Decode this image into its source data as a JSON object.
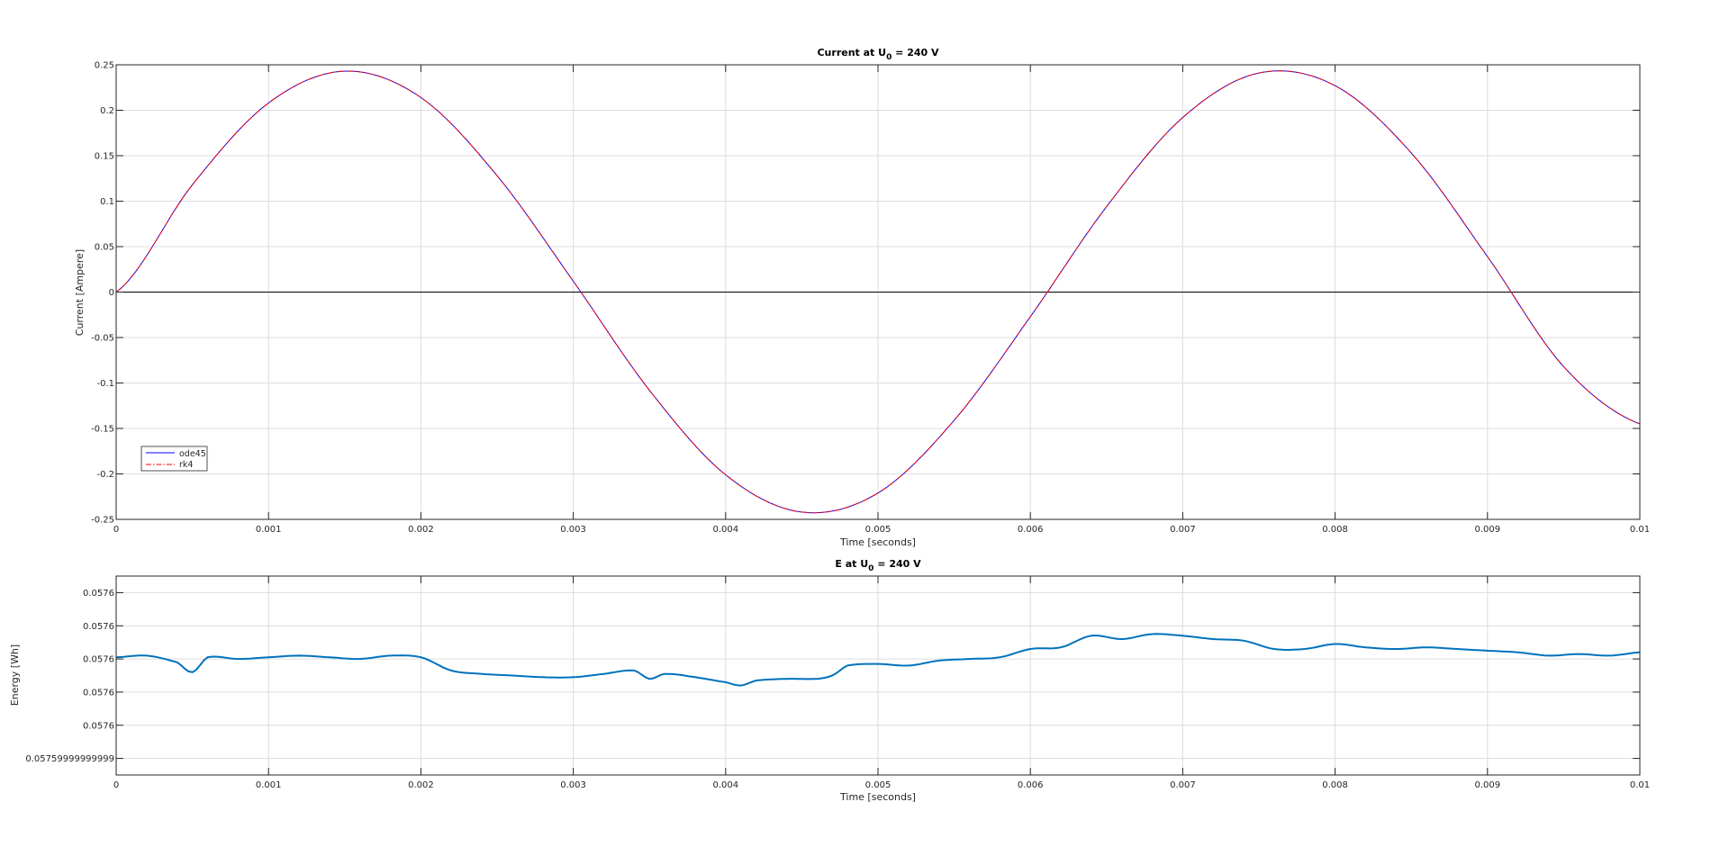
{
  "colors": {
    "ode45": "#0000ff",
    "rk4": "#ff0000",
    "energy": "#0072bd",
    "grid": "#dddddd",
    "axis": "#262626",
    "zero_line": "#000000"
  },
  "chart_data": [
    {
      "type": "line",
      "title": "Current at U",
      "title_sub": "0",
      "title_suffix": " = 240 V",
      "xlabel": "Time [seconds]",
      "ylabel": "Current [Ampere]",
      "xlim": [
        0,
        0.01
      ],
      "ylim": [
        -0.25,
        0.25
      ],
      "grid": true,
      "legend_position": "bottom-left",
      "xticks": [
        0,
        0.001,
        0.002,
        0.003,
        0.004,
        0.005,
        0.006,
        0.007,
        0.008,
        0.009,
        0.01
      ],
      "xtick_labels": [
        "0",
        "0.001",
        "0.002",
        "0.003",
        "0.004",
        "0.005",
        "0.006",
        "0.007",
        "0.008",
        "0.009",
        "0.01"
      ],
      "yticks": [
        -0.25,
        -0.2,
        -0.15,
        -0.1,
        -0.05,
        0,
        0.05,
        0.1,
        0.15,
        0.2,
        0.25
      ],
      "ytick_labels": [
        "-0.25",
        "-0.2",
        "-0.15",
        "-0.1",
        "-0.05",
        "0",
        "0.05",
        "0.1",
        "0.15",
        "0.2",
        "0.25"
      ],
      "zero_line": true,
      "series": [
        {
          "name": "ode45",
          "style": "solid",
          "x": [
            0,
            0.0005,
            0.001,
            0.0015,
            0.002,
            0.0025,
            0.003,
            0.0035,
            0.004,
            0.0045,
            0.005,
            0.0055,
            0.006,
            0.0065,
            0.007,
            0.0075,
            0.008,
            0.0085,
            0.009,
            0.0095,
            0.01
          ],
          "y": [
            0,
            0.118,
            0.208,
            0.243,
            0.214,
            0.128,
            0.012,
            -0.108,
            -0.201,
            -0.242,
            -0.221,
            -0.141,
            -0.027,
            0.094,
            0.192,
            0.241,
            0.227,
            0.153,
            0.039,
            -0.082,
            -0.145
          ]
        },
        {
          "name": "rk4",
          "style": "dashdot",
          "x": [
            0,
            0.0005,
            0.001,
            0.0015,
            0.002,
            0.0025,
            0.003,
            0.0035,
            0.004,
            0.0045,
            0.005,
            0.0055,
            0.006,
            0.0065,
            0.007,
            0.0075,
            0.008,
            0.0085,
            0.009,
            0.0095,
            0.01
          ],
          "y": [
            0,
            0.118,
            0.208,
            0.243,
            0.214,
            0.128,
            0.012,
            -0.108,
            -0.201,
            -0.242,
            -0.221,
            -0.141,
            -0.027,
            0.094,
            0.192,
            0.241,
            0.227,
            0.153,
            0.039,
            -0.082,
            -0.145
          ]
        }
      ]
    },
    {
      "type": "line",
      "title": "E at U",
      "title_sub": "0",
      "title_suffix": " = 240 V",
      "xlabel": "Time [seconds]",
      "ylabel": "Energy [Wh]",
      "xlim": [
        0,
        0.01
      ],
      "ylim": [
        0,
        6
      ],
      "grid": true,
      "xticks": [
        0,
        0.001,
        0.002,
        0.003,
        0.004,
        0.005,
        0.006,
        0.007,
        0.008,
        0.009,
        0.01
      ],
      "xtick_labels": [
        "0",
        "0.001",
        "0.002",
        "0.003",
        "0.004",
        "0.005",
        "0.006",
        "0.007",
        "0.008",
        "0.009",
        "0.01"
      ],
      "yticks": [
        0.5,
        1.5,
        2.5,
        3.5,
        4.5,
        5.5
      ],
      "ytick_labels": [
        "0.05759999999999",
        "0.0576",
        "0.0576",
        "0.0576",
        "0.0576",
        "0.0576"
      ],
      "series": [
        {
          "name": "",
          "x": [
            0,
            0.0002,
            0.0004,
            0.0005,
            0.0006,
            0.0008,
            0.001,
            0.0012,
            0.0014,
            0.0016,
            0.0018,
            0.002,
            0.0022,
            0.0024,
            0.0026,
            0.0028,
            0.003,
            0.0032,
            0.0034,
            0.0035,
            0.0036,
            0.0038,
            0.004,
            0.0041,
            0.0042,
            0.0044,
            0.0046,
            0.0047,
            0.0048,
            0.005,
            0.0052,
            0.0054,
            0.0056,
            0.0058,
            0.006,
            0.0062,
            0.0064,
            0.0066,
            0.0068,
            0.007,
            0.0072,
            0.0074,
            0.0076,
            0.0078,
            0.008,
            0.0082,
            0.0084,
            0.0086,
            0.0088,
            0.009,
            0.0092,
            0.0094,
            0.0096,
            0.0098,
            0.01
          ],
          "y": [
            3.55,
            3.6,
            3.4,
            3.1,
            3.55,
            3.5,
            3.55,
            3.6,
            3.55,
            3.5,
            3.6,
            3.55,
            3.15,
            3.05,
            3.0,
            2.95,
            2.95,
            3.05,
            3.15,
            2.9,
            3.05,
            2.95,
            2.8,
            2.7,
            2.85,
            2.9,
            2.9,
            3.0,
            3.3,
            3.35,
            3.3,
            3.45,
            3.5,
            3.55,
            3.8,
            3.85,
            4.2,
            4.1,
            4.25,
            4.2,
            4.1,
            4.05,
            3.8,
            3.8,
            3.95,
            3.85,
            3.8,
            3.85,
            3.8,
            3.75,
            3.7,
            3.6,
            3.65,
            3.6,
            3.7
          ]
        }
      ]
    }
  ]
}
